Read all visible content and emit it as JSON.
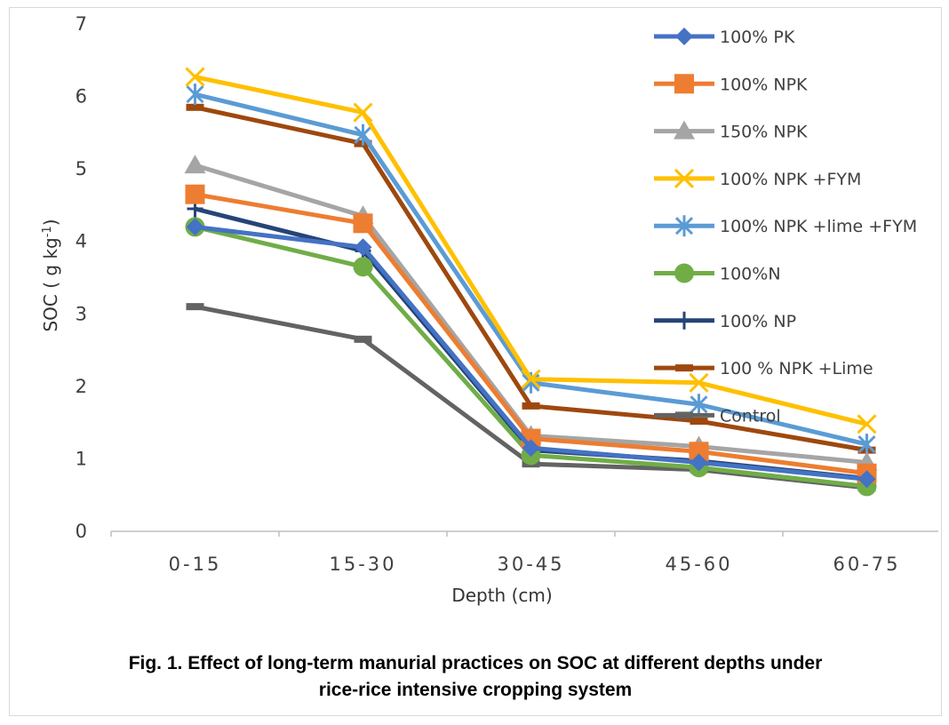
{
  "chart_data": {
    "type": "line",
    "xlabel": "Depth (cm)",
    "ylabel_main": "SOC  ( g kg",
    "ylabel_sup": "-1",
    "ylabel_end": ")",
    "categories": [
      "0-15",
      "15-30",
      "30-45",
      "45-60",
      "60-75"
    ],
    "ylim": [
      0,
      7
    ],
    "yticks": [
      0,
      1,
      2,
      3,
      4,
      5,
      6,
      7
    ],
    "grid": false,
    "legend_position": "right",
    "series": [
      {
        "name": "100% PK",
        "color": "#4472c4",
        "marker": "diamond",
        "values": [
          4.2,
          3.92,
          1.15,
          0.95,
          0.72
        ]
      },
      {
        "name": "100% NPK",
        "color": "#ed7d31",
        "marker": "square",
        "values": [
          4.65,
          4.25,
          1.28,
          1.1,
          0.8
        ]
      },
      {
        "name": "150% NPK",
        "color": "#a5a5a5",
        "marker": "triangle",
        "values": [
          5.05,
          4.35,
          1.32,
          1.17,
          0.95
        ]
      },
      {
        "name": "100% NPK +FYM",
        "color": "#ffc000",
        "marker": "x",
        "values": [
          6.27,
          5.78,
          2.1,
          2.05,
          1.48
        ]
      },
      {
        "name": "100% NPK +lime +FYM",
        "color": "#5b9bd5",
        "marker": "star",
        "values": [
          6.03,
          5.47,
          2.05,
          1.75,
          1.2
        ]
      },
      {
        "name": "100%N",
        "color": "#70ad47",
        "marker": "circle",
        "values": [
          4.2,
          3.65,
          1.05,
          0.88,
          0.62
        ]
      },
      {
        "name": "100% NP",
        "color": "#264478",
        "marker": "plus",
        "values": [
          4.45,
          3.87,
          1.12,
          0.97,
          0.73
        ]
      },
      {
        "name": "100 % NPK +Lime",
        "color": "#9e480e",
        "marker": "dash",
        "values": [
          5.85,
          5.35,
          1.73,
          1.52,
          1.12
        ]
      },
      {
        "name": "Control",
        "color": "#636363",
        "marker": "dash",
        "values": [
          3.1,
          2.65,
          0.93,
          0.85,
          0.6
        ]
      }
    ]
  },
  "caption": {
    "line1": "Fig. 1. Effect of long-term manurial practices on SOC at different depths under",
    "line2": "rice-rice intensive cropping system"
  }
}
